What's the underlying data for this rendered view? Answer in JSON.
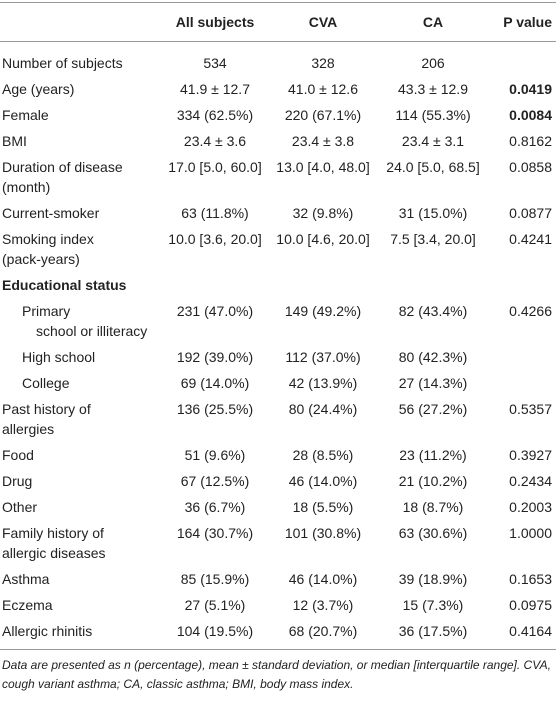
{
  "table": {
    "columns": [
      "All subjects",
      "CVA",
      "CA",
      "P value"
    ],
    "rows": [
      {
        "label": "Number of subjects",
        "cells": [
          "534",
          "328",
          "206"
        ],
        "p": null
      },
      {
        "label": "Age (years)",
        "cells": [
          "41.9 ± 12.7",
          "41.0 ± 12.6",
          "43.3 ± 12.9"
        ],
        "p": "0.0419",
        "p_bold": true
      },
      {
        "label": "Female",
        "cells": [
          "334 (62.5%)",
          "220 (67.1%)",
          "114 (55.3%)"
        ],
        "p": "0.0084",
        "p_bold": true
      },
      {
        "label": "BMI",
        "cells": [
          "23.4 ± 3.6",
          "23.4 ± 3.8",
          "23.4 ± 3.1"
        ],
        "p": "0.8162"
      },
      {
        "label": [
          "Duration of disease",
          "(month)"
        ],
        "cells": [
          "17.0 [5.0, 60.0]",
          "13.0 [4.0, 48.0]",
          "24.0 [5.0, 68.5]"
        ],
        "p": "0.0858"
      },
      {
        "label": "Current-smoker",
        "cells": [
          "63 (11.8%)",
          "32 (9.8%)",
          "31 (15.0%)"
        ],
        "p": "0.0877"
      },
      {
        "label": [
          "Smoking index",
          "(pack-years)"
        ],
        "cells": [
          "10.0 [3.6, 20.0]",
          "10.0 [4.6, 20.0]",
          "7.5 [3.4, 20.0]"
        ],
        "p": "0.4241"
      },
      {
        "label": "Educational status",
        "section": true
      },
      {
        "label": [
          "Primary",
          "school or illiteracy"
        ],
        "cells": [
          "231 (47.0%)",
          "149 (49.2%)",
          "82 (43.4%)"
        ],
        "p": "0.4266",
        "indent": true
      },
      {
        "label": "High school",
        "cells": [
          "192 (39.0%)",
          "112 (37.0%)",
          "80 (42.3%)"
        ],
        "p": null,
        "indent": true
      },
      {
        "label": "College",
        "cells": [
          "69 (14.0%)",
          "42 (13.9%)",
          "27 (14.3%)"
        ],
        "p": null,
        "indent": true
      },
      {
        "label": [
          "Past history of",
          "allergies"
        ],
        "cells": [
          "136 (25.5%)",
          "80 (24.4%)",
          "56 (27.2%)"
        ],
        "p": "0.5357"
      },
      {
        "label": "Food",
        "cells": [
          "51 (9.6%)",
          "28 (8.5%)",
          "23 (11.2%)"
        ],
        "p": "0.3927"
      },
      {
        "label": "Drug",
        "cells": [
          "67 (12.5%)",
          "46 (14.0%)",
          "21 (10.2%)"
        ],
        "p": "0.2434"
      },
      {
        "label": "Other",
        "cells": [
          "36 (6.7%)",
          "18 (5.5%)",
          "18 (8.7%)"
        ],
        "p": "0.2003"
      },
      {
        "label": [
          "Family history of",
          "allergic diseases"
        ],
        "cells": [
          "164 (30.7%)",
          "101 (30.8%)",
          "63 (30.6%)"
        ],
        "p": "1.0000"
      },
      {
        "label": "Asthma",
        "cells": [
          "85 (15.9%)",
          "46 (14.0%)",
          "39 (18.9%)"
        ],
        "p": "0.1653"
      },
      {
        "label": "Eczema",
        "cells": [
          "27 (5.1%)",
          "12 (3.7%)",
          "15 (7.3%)"
        ],
        "p": "0.0975"
      },
      {
        "label": "Allergic rhinitis",
        "cells": [
          "104 (19.5%)",
          "68 (20.7%)",
          "36 (17.5%)"
        ],
        "p": "0.4164"
      }
    ]
  },
  "footnote": "Data are presented as n (percentage), mean ± standard deviation, or median [interquartile range]. CVA, cough variant asthma; CA, classic asthma; BMI, body mass index."
}
